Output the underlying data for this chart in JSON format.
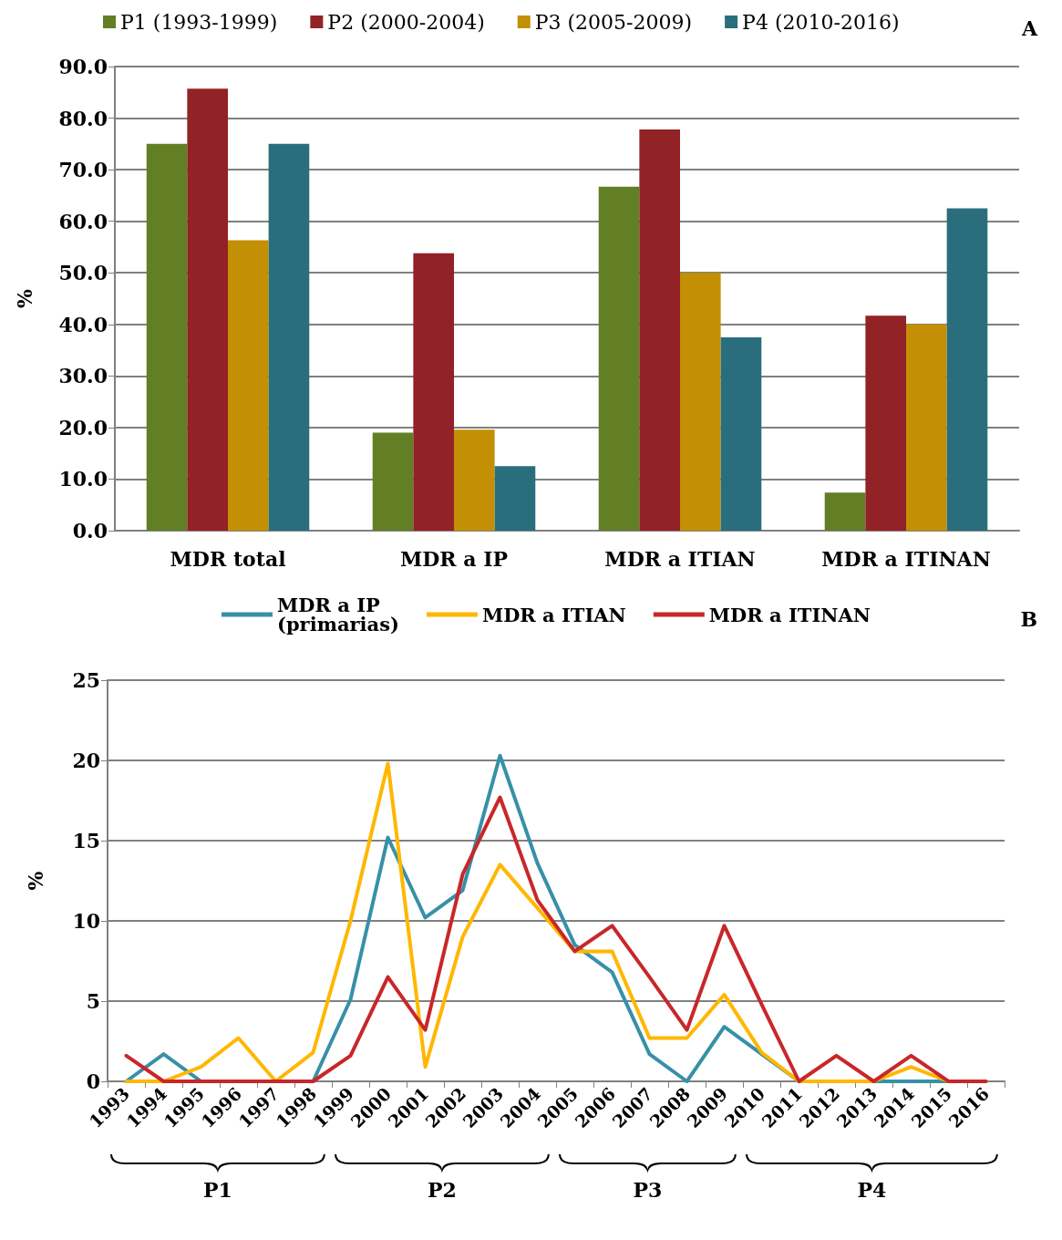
{
  "chart_data": [
    {
      "type": "bar",
      "annotations": [
        "A"
      ],
      "ylabel": "%",
      "categories": [
        "MDR total",
        "MDR a IP",
        "MDR a ITIAN",
        "MDR a ITINAN"
      ],
      "series": [
        {
          "name": "P1 (1993-1999)",
          "color": "#627f25",
          "values": [
            75.0,
            19.0,
            66.7,
            7.4
          ]
        },
        {
          "name": "P2 (2000-2004)",
          "color": "#922225",
          "values": [
            85.7,
            53.8,
            77.8,
            41.7
          ]
        },
        {
          "name": "P3 (2005-2009)",
          "color": "#c38f05",
          "values": [
            56.3,
            19.6,
            50.0,
            40.0
          ]
        },
        {
          "name": "P4 (2010-2016)",
          "color": "#2a6e7d",
          "values": [
            75.0,
            12.5,
            37.5,
            62.5
          ]
        }
      ],
      "ylim": [
        0,
        90
      ],
      "yticks": [
        {
          "value": 0,
          "label": "0.0"
        },
        {
          "value": 10,
          "label": "10.0"
        },
        {
          "value": 20,
          "label": "20.0"
        },
        {
          "value": 30,
          "label": "30.0"
        },
        {
          "value": 40,
          "label": "40.0"
        },
        {
          "value": 50,
          "label": "50.0"
        },
        {
          "value": 60,
          "label": "60.0"
        },
        {
          "value": 70,
          "label": "70.0"
        },
        {
          "value": 80,
          "label": "80.0"
        },
        {
          "value": 90,
          "label": "90.0"
        }
      ],
      "grid": "y",
      "legend": "top"
    },
    {
      "type": "line",
      "annotations": [
        "B",
        "P1",
        "P2",
        "P3",
        "P4"
      ],
      "ylabel": "%",
      "categories": [
        "1993",
        "1994",
        "1995",
        "1996",
        "1997",
        "1998",
        "1999",
        "2000",
        "2001",
        "2002",
        "2003",
        "2004",
        "2005",
        "2006",
        "2007",
        "2008",
        "2009",
        "2010",
        "2011",
        "2012",
        "2013",
        "2014",
        "2015",
        "2016"
      ],
      "series": [
        {
          "name": "MDR a IP\n(primarias)",
          "color": "#3790a8",
          "values": [
            0,
            1.7,
            0,
            0,
            0,
            0,
            5.1,
            15.2,
            10.2,
            11.9,
            20.3,
            13.6,
            8.5,
            6.8,
            1.7,
            0,
            3.4,
            1.7,
            0,
            0,
            0,
            0,
            0,
            0
          ]
        },
        {
          "name": "MDR a ITIAN",
          "color": "#ffb700",
          "values": [
            0,
            0,
            0.9,
            2.7,
            0,
            1.8,
            10.0,
            19.8,
            0.9,
            9.0,
            13.5,
            10.8,
            8.1,
            8.1,
            2.7,
            2.7,
            5.4,
            1.8,
            0,
            0,
            0,
            0.9,
            0,
            0
          ]
        },
        {
          "name": "MDR a ITINAN",
          "color": "#c8272a",
          "values": [
            1.6,
            0,
            0,
            0,
            0,
            0,
            1.6,
            6.5,
            3.2,
            12.9,
            17.7,
            11.3,
            8.1,
            9.7,
            6.5,
            3.2,
            9.7,
            4.8,
            0,
            1.6,
            0,
            1.6,
            0,
            0
          ]
        }
      ],
      "ylim": [
        0,
        25
      ],
      "yticks": [
        0,
        5,
        10,
        15,
        20,
        25
      ],
      "grid": "y",
      "legend": "top",
      "marker": "none",
      "line_style": "solid"
    }
  ]
}
